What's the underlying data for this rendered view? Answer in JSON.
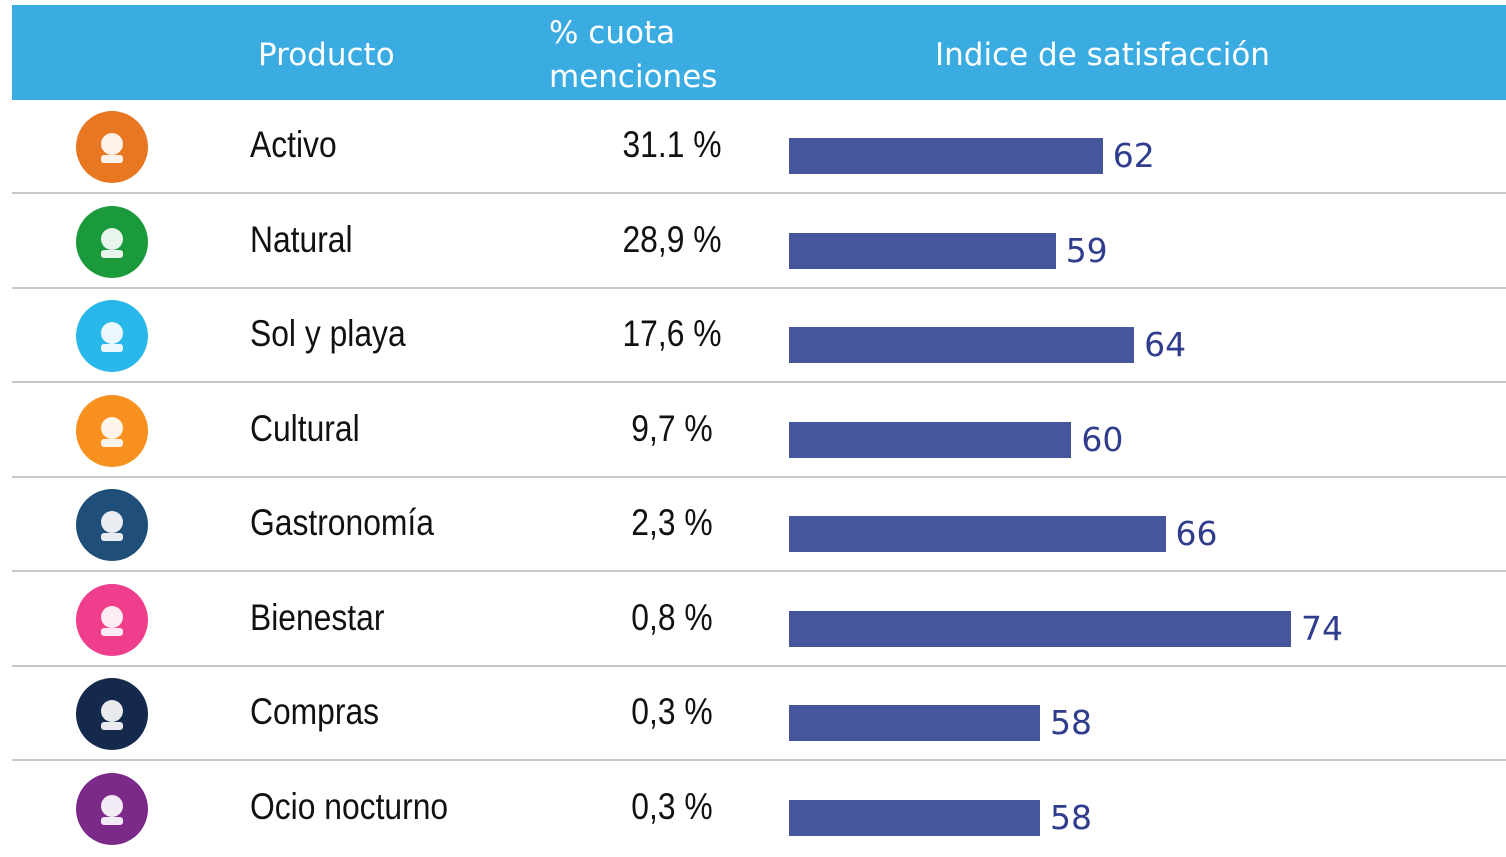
{
  "table": {
    "headers": [
      "Producto",
      "% cuota menciones",
      "Indice de satisfacción"
    ],
    "rows": [
      {
        "product": "Activo",
        "share": "31.1 %",
        "satisfaction": 62
      },
      {
        "product": "Natural",
        "share": "28,9 %",
        "satisfaction": 59
      },
      {
        "product": "Sol y playa",
        "share": "17,6 %",
        "satisfaction": 64
      },
      {
        "product": "Cultural",
        "share": "9,7 %",
        "satisfaction": 60
      },
      {
        "product": "Gastronomía",
        "share": "2,3 %",
        "satisfaction": 66
      },
      {
        "product": "Bienestar",
        "share": "0,8 %",
        "satisfaction": 74
      },
      {
        "product": "Compras",
        "share": "0,3 %",
        "satisfaction": 58
      },
      {
        "product": "Ocio nocturno",
        "share": "0,3 %",
        "satisfaction": 58
      }
    ]
  }
}
